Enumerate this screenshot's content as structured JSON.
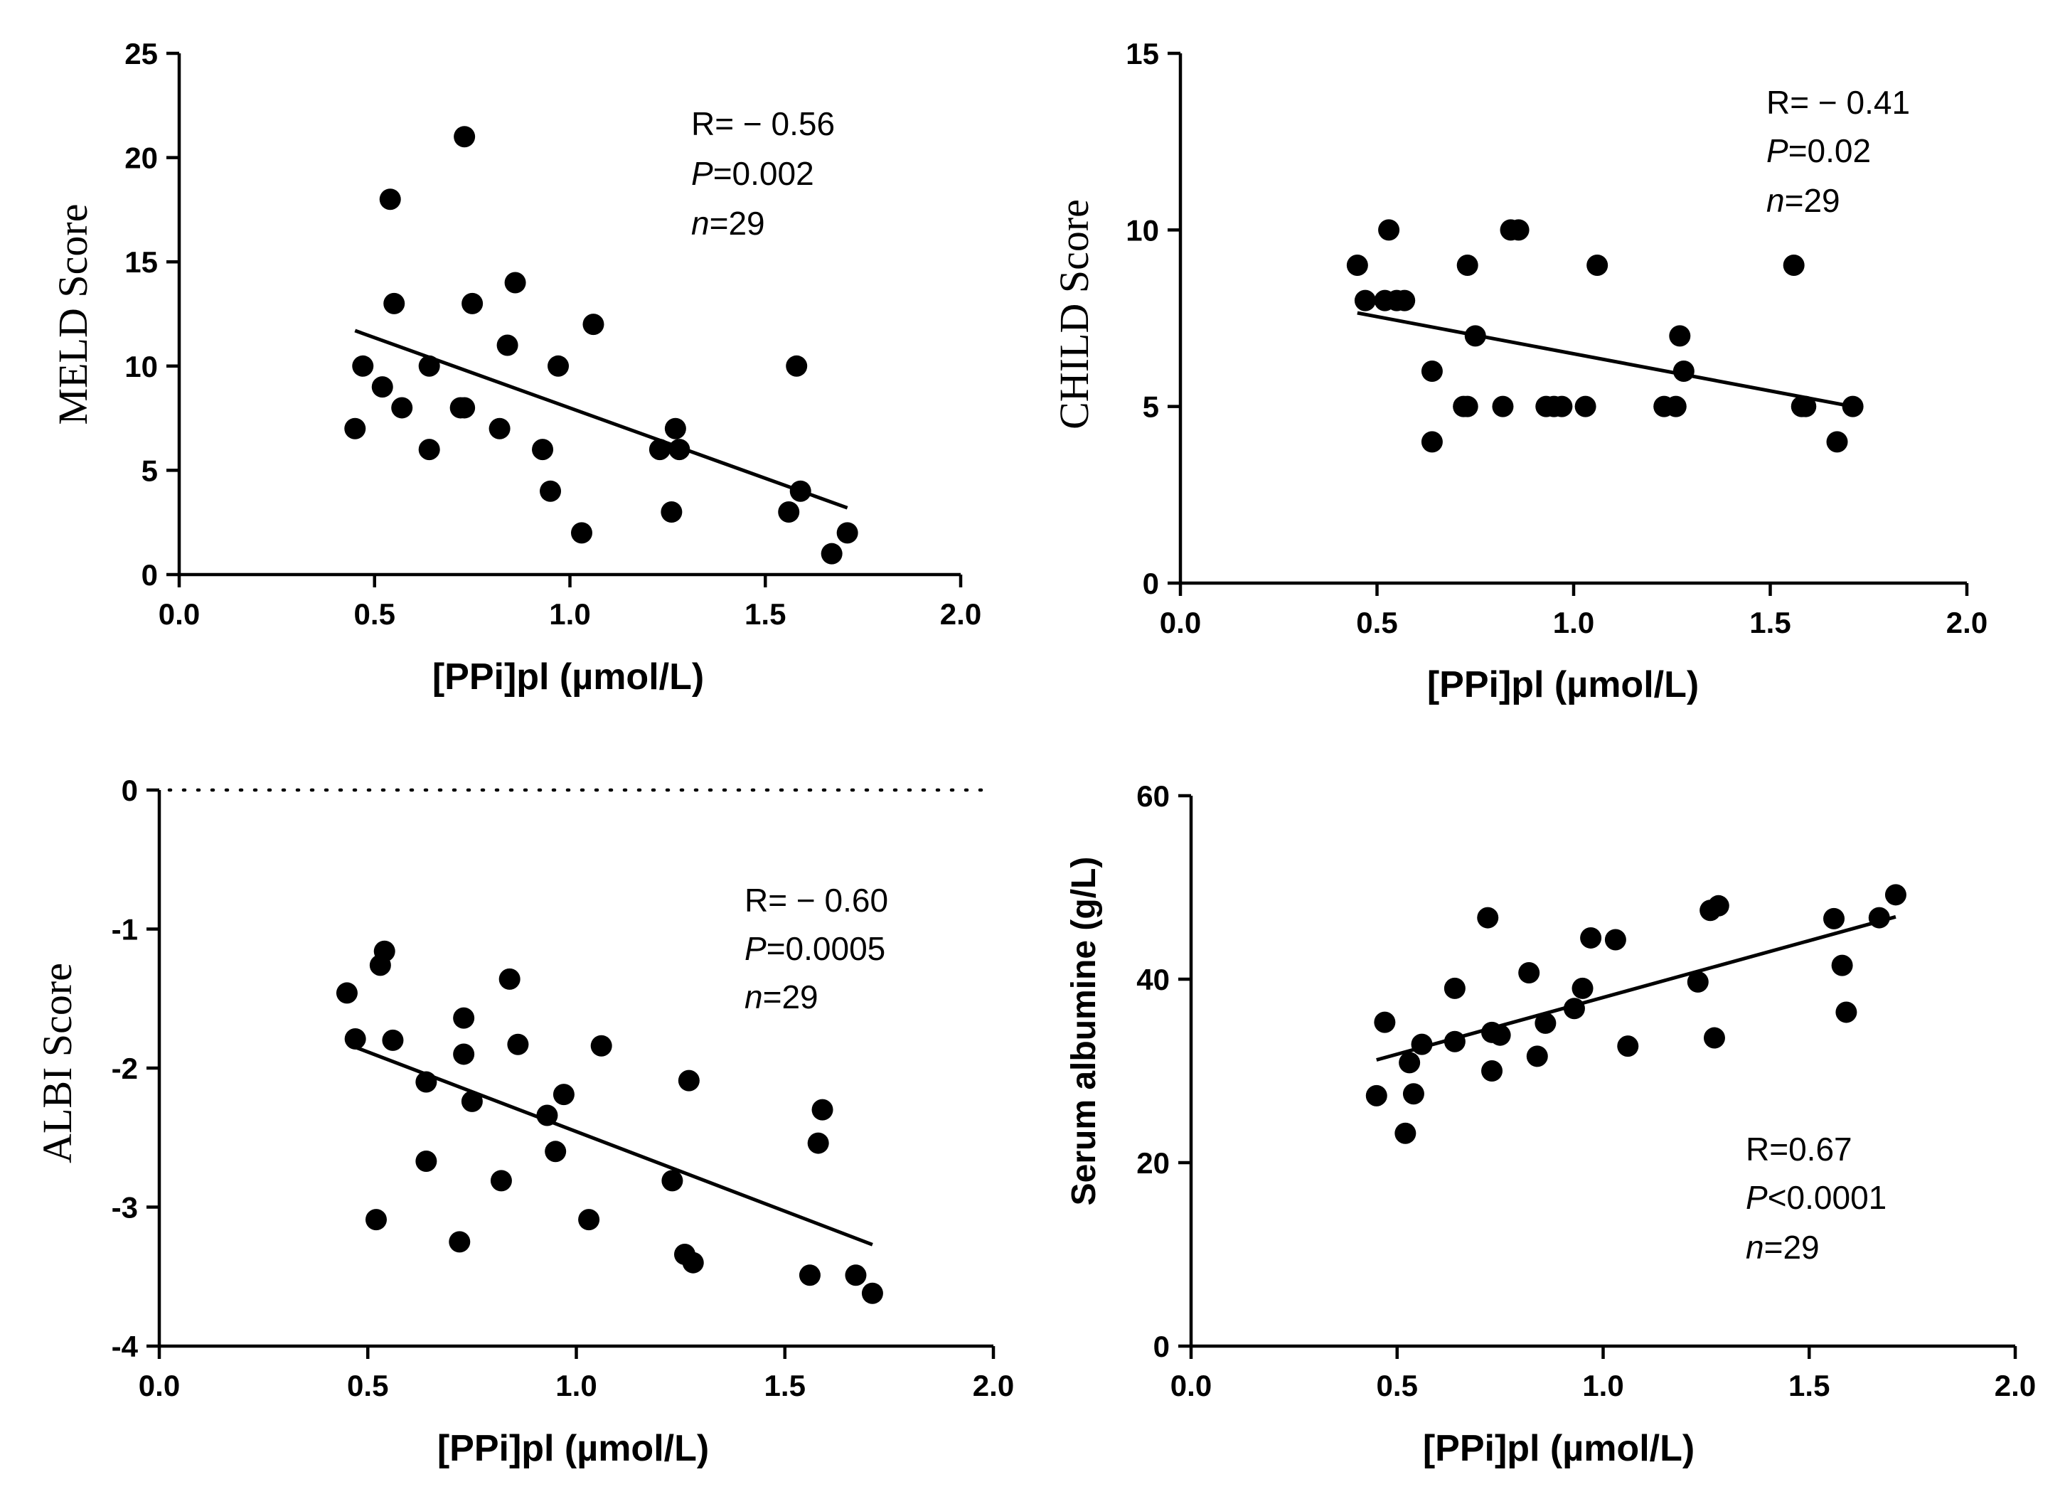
{
  "chart_data": [
    {
      "type": "scatter",
      "id": "meld",
      "xlabel": "[PPi]pl (µmol/L)",
      "ylabel": "MELD Score",
      "xlim": [
        0,
        2.0
      ],
      "ylim": [
        0,
        25
      ],
      "xticks": [
        "0.0",
        "0.5",
        "1.0",
        "1.5",
        "2.0"
      ],
      "yticks": [
        "0",
        "5",
        "10",
        "15",
        "20",
        "25"
      ],
      "annotation": {
        "r": "R= − 0.56",
        "p_label": "P",
        "p_value": "=0.002",
        "n_label": "n",
        "n_value": "=29"
      },
      "fit": {
        "x": [
          0.45,
          1.71
        ],
        "y": [
          11.7,
          3.2
        ]
      },
      "x": [
        0.45,
        0.47,
        0.52,
        0.54,
        0.55,
        0.57,
        0.64,
        0.64,
        0.72,
        0.73,
        0.73,
        0.75,
        0.82,
        0.84,
        0.86,
        0.93,
        0.95,
        0.97,
        1.03,
        1.06,
        1.23,
        1.26,
        1.27,
        1.28,
        1.56,
        1.58,
        1.59,
        1.67,
        1.71
      ],
      "y": [
        7,
        10,
        9,
        18,
        13,
        8,
        6,
        10,
        8,
        8,
        21,
        13,
        7,
        11,
        14,
        6,
        4,
        10,
        2,
        12,
        6,
        3,
        7,
        6,
        3,
        10,
        4,
        1,
        2
      ]
    },
    {
      "type": "scatter",
      "id": "child",
      "xlabel": "[PPi]pl (µmol/L)",
      "ylabel": "CHILD Score",
      "xlim": [
        0,
        2.0
      ],
      "ylim": [
        0,
        15
      ],
      "xticks": [
        "0.0",
        "0.5",
        "1.0",
        "1.5",
        "2.0"
      ],
      "yticks": [
        "0",
        "5",
        "10",
        "15"
      ],
      "annotation": {
        "r": "R= − 0.41",
        "p_label": "P",
        "p_value": "=0.02",
        "n_label": "n",
        "n_value": "=29"
      },
      "fit": {
        "x": [
          0.45,
          1.71
        ],
        "y": [
          7.65,
          5.0
        ]
      },
      "x": [
        0.45,
        0.47,
        0.52,
        0.53,
        0.55,
        0.57,
        0.64,
        0.64,
        0.72,
        0.73,
        0.73,
        0.75,
        0.82,
        0.84,
        0.86,
        0.93,
        0.95,
        0.97,
        1.03,
        1.06,
        1.23,
        1.26,
        1.27,
        1.28,
        1.56,
        1.58,
        1.59,
        1.67,
        1.71
      ],
      "y": [
        9,
        8,
        8,
        10,
        8,
        8,
        6,
        4,
        5,
        5,
        9,
        7,
        5,
        10,
        10,
        5,
        5,
        5,
        5,
        9,
        5,
        5,
        7,
        6,
        9,
        5,
        5,
        4,
        5
      ]
    },
    {
      "type": "scatter",
      "id": "albi",
      "xlabel": "[PPi]pl (µmol/L)",
      "ylabel": "ALBI Score",
      "xlim": [
        0,
        2.0
      ],
      "ylim": [
        -4,
        0
      ],
      "xticks": [
        "0.0",
        "0.5",
        "1.0",
        "1.5",
        "2.0"
      ],
      "yticks": [
        "0",
        "-1",
        "-2",
        "-3",
        "-4"
      ],
      "reference_line": 0,
      "annotation": {
        "r": "R= − 0.60",
        "p_label": "P",
        "p_value": "=0.0005",
        "n_label": "n",
        "n_value": "=29"
      },
      "fit": {
        "x": [
          0.47,
          1.71
        ],
        "y": [
          -1.85,
          -3.27
        ]
      },
      "x": [
        0.45,
        0.47,
        0.52,
        0.53,
        0.54,
        0.56,
        0.64,
        0.64,
        0.72,
        0.73,
        0.73,
        0.75,
        0.82,
        0.84,
        0.86,
        0.93,
        0.95,
        0.97,
        1.03,
        1.06,
        1.23,
        1.26,
        1.27,
        1.28,
        1.56,
        1.58,
        1.59,
        1.67,
        1.71
      ],
      "y": [
        -1.46,
        -1.79,
        -3.09,
        -1.26,
        -1.16,
        -1.8,
        -2.1,
        -2.67,
        -3.25,
        -1.64,
        -1.9,
        -2.24,
        -2.81,
        -1.36,
        -1.83,
        -2.34,
        -2.6,
        -2.19,
        -3.09,
        -1.84,
        -2.81,
        -3.34,
        -2.09,
        -3.4,
        -3.49,
        -2.54,
        -2.3,
        -3.49,
        -3.62
      ]
    },
    {
      "type": "scatter",
      "id": "albumine",
      "xlabel": "[PPi]pl (µmol/L)",
      "ylabel": "Serum albumine (g/L)",
      "xlim": [
        0,
        2.0
      ],
      "ylim": [
        0,
        60
      ],
      "xticks": [
        "0.0",
        "0.5",
        "1.0",
        "1.5",
        "2.0"
      ],
      "yticks": [
        "0",
        "20",
        "40",
        "60"
      ],
      "annotation": {
        "r": "R=0.67",
        "p_label": "P",
        "p_value": "<0.0001",
        "n_label": "n",
        "n_value": "=29"
      },
      "fit": {
        "x": [
          0.45,
          1.71
        ],
        "y": [
          31.2,
          46.8
        ]
      },
      "x": [
        0.45,
        0.47,
        0.52,
        0.53,
        0.54,
        0.56,
        0.64,
        0.64,
        0.72,
        0.73,
        0.73,
        0.75,
        0.82,
        0.84,
        0.86,
        0.93,
        0.95,
        0.97,
        1.03,
        1.06,
        1.23,
        1.26,
        1.27,
        1.28,
        1.56,
        1.58,
        1.59,
        1.67,
        1.71
      ],
      "y": [
        27.3,
        35.3,
        23.2,
        30.9,
        27.5,
        32.9,
        33.2,
        39.0,
        46.7,
        30.0,
        34.2,
        33.9,
        40.7,
        31.6,
        35.2,
        36.8,
        39.0,
        44.5,
        44.3,
        32.7,
        39.7,
        47.5,
        33.6,
        48.0,
        46.6,
        41.5,
        36.4,
        46.7,
        49.2
      ]
    }
  ]
}
